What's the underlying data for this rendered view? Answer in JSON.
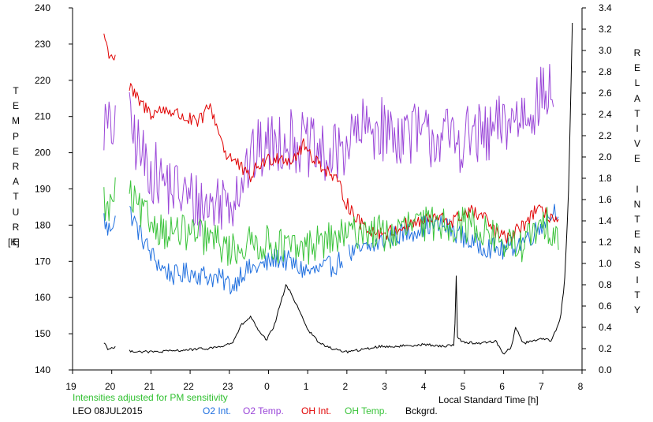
{
  "chart_data": {
    "type": "line",
    "title": "",
    "xlabel": "Local Standard Time [h]",
    "ylabel_left": "TEMPERATURE",
    "ylabel_left_unit": "[K]",
    "ylabel_right": "RELATIVE INTENSITY",
    "xlim": [
      19,
      32
    ],
    "x_ticks": [
      19,
      20,
      21,
      22,
      23,
      24,
      25,
      26,
      27,
      28,
      29,
      30,
      31,
      32
    ],
    "x_tick_labels": [
      "19",
      "20",
      "21",
      "22",
      "23",
      "0",
      "1",
      "2",
      "3",
      "4",
      "5",
      "6",
      "7",
      "8"
    ],
    "ylim_left": [
      140,
      240
    ],
    "y_left_ticks": [
      "140",
      "150",
      "160",
      "170",
      "180",
      "190",
      "200",
      "210",
      "220",
      "230",
      "240"
    ],
    "ylim_right": [
      0.0,
      3.4
    ],
    "y_right_ticks": [
      "0.0",
      "0.2",
      "0.4",
      "0.6",
      "0.8",
      "1.0",
      "1.2",
      "1.4",
      "1.6",
      "1.8",
      "2.0",
      "2.2",
      "2.4",
      "2.6",
      "2.8",
      "3.0",
      "3.2",
      "3.4"
    ],
    "grid": false,
    "note": "Intensities adjusted for PM sensitivity",
    "station_date": "LEO 08JUL2015",
    "series": [
      {
        "name": "O2 Int.",
        "color": "#1f6fdf",
        "axis": "left",
        "noise": 3.0,
        "points": [
          [
            19.8,
            182
          ],
          [
            19.9,
            178
          ],
          [
            20.1,
            183
          ],
          [
            null,
            null
          ],
          [
            20.45,
            184
          ],
          [
            20.7,
            178
          ],
          [
            21.0,
            172
          ],
          [
            21.3,
            168
          ],
          [
            21.6,
            166
          ],
          [
            22.0,
            167
          ],
          [
            22.4,
            166
          ],
          [
            22.8,
            165
          ],
          [
            23.1,
            163
          ],
          [
            23.3,
            167
          ],
          [
            23.6,
            168
          ],
          [
            23.9,
            169
          ],
          [
            24.2,
            171
          ],
          [
            24.5,
            170
          ],
          [
            24.8,
            168
          ],
          [
            25.1,
            167
          ],
          [
            25.4,
            168
          ],
          [
            25.7,
            169
          ],
          [
            25.9,
            171
          ],
          [
            null,
            null
          ],
          [
            26.05,
            172
          ],
          [
            26.4,
            173
          ],
          [
            26.8,
            175
          ],
          [
            27.2,
            177
          ],
          [
            27.6,
            178
          ],
          [
            28.0,
            180
          ],
          [
            28.4,
            180
          ],
          [
            28.8,
            178
          ],
          [
            29.2,
            175
          ],
          [
            29.6,
            174
          ],
          [
            30.0,
            173
          ],
          [
            30.4,
            175
          ],
          [
            30.8,
            178
          ],
          [
            31.1,
            182
          ],
          [
            31.4,
            185
          ]
        ]
      },
      {
        "name": "O2 Temp.",
        "color": "#9a46d8",
        "axis": "left",
        "noise": 9.0,
        "points": [
          [
            19.8,
            208
          ],
          [
            20.0,
            205
          ],
          [
            20.1,
            212
          ],
          [
            null,
            null
          ],
          [
            20.45,
            208
          ],
          [
            20.8,
            198
          ],
          [
            21.2,
            193
          ],
          [
            21.6,
            190
          ],
          [
            22.0,
            187
          ],
          [
            22.4,
            185
          ],
          [
            22.8,
            187
          ],
          [
            23.1,
            188
          ],
          [
            23.4,
            195
          ],
          [
            23.7,
            200
          ],
          [
            24.0,
            202
          ],
          [
            24.4,
            204
          ],
          [
            24.8,
            203
          ],
          [
            25.2,
            200
          ],
          [
            25.6,
            198
          ],
          [
            26.0,
            203
          ],
          [
            26.4,
            206
          ],
          [
            26.8,
            207
          ],
          [
            27.2,
            205
          ],
          [
            27.6,
            206
          ],
          [
            28.0,
            204
          ],
          [
            28.4,
            205
          ],
          [
            28.8,
            203
          ],
          [
            29.2,
            205
          ],
          [
            29.6,
            204
          ],
          [
            30.0,
            208
          ],
          [
            30.4,
            210
          ],
          [
            30.8,
            214
          ],
          [
            31.1,
            216
          ],
          [
            31.3,
            218
          ]
        ]
      },
      {
        "name": "OH Int.",
        "color": "#e00000",
        "axis": "left",
        "noise": 2.0,
        "points": [
          [
            19.8,
            233
          ],
          [
            19.9,
            228
          ],
          [
            20.1,
            226
          ],
          [
            null,
            null
          ],
          [
            20.45,
            218
          ],
          [
            20.7,
            214
          ],
          [
            21.0,
            211
          ],
          [
            21.4,
            212
          ],
          [
            21.8,
            210
          ],
          [
            22.2,
            208
          ],
          [
            22.5,
            213
          ],
          [
            22.7,
            207
          ],
          [
            22.9,
            200
          ],
          [
            23.2,
            197
          ],
          [
            23.5,
            193
          ],
          [
            23.8,
            197
          ],
          [
            24.2,
            199
          ],
          [
            24.6,
            198
          ],
          [
            24.9,
            202
          ],
          [
            25.2,
            198
          ],
          [
            25.5,
            195
          ],
          [
            25.8,
            191
          ],
          [
            26.0,
            186
          ],
          [
            26.3,
            181
          ],
          [
            26.7,
            178
          ],
          [
            27.1,
            178
          ],
          [
            27.5,
            180
          ],
          [
            27.9,
            181
          ],
          [
            28.3,
            182
          ],
          [
            28.7,
            181
          ],
          [
            29.1,
            184
          ],
          [
            29.5,
            182
          ],
          [
            29.8,
            178
          ],
          [
            30.1,
            176
          ],
          [
            30.5,
            180
          ],
          [
            30.8,
            184
          ],
          [
            31.1,
            183
          ],
          [
            31.4,
            181
          ]
        ]
      },
      {
        "name": "OH Temp.",
        "color": "#3ac33a",
        "axis": "left",
        "noise": 5.0,
        "points": [
          [
            19.8,
            187
          ],
          [
            19.9,
            183
          ],
          [
            20.1,
            190
          ],
          [
            null,
            null
          ],
          [
            20.45,
            188
          ],
          [
            20.7,
            184
          ],
          [
            21.0,
            181
          ],
          [
            21.4,
            178
          ],
          [
            21.8,
            178
          ],
          [
            22.2,
            177
          ],
          [
            22.6,
            176
          ],
          [
            23.0,
            173
          ],
          [
            23.3,
            174
          ],
          [
            23.6,
            175
          ],
          [
            24.0,
            175
          ],
          [
            24.4,
            174
          ],
          [
            24.8,
            173
          ],
          [
            25.2,
            175
          ],
          [
            25.6,
            176
          ],
          [
            26.0,
            177
          ],
          [
            26.4,
            179
          ],
          [
            26.8,
            178
          ],
          [
            27.2,
            177
          ],
          [
            27.6,
            180
          ],
          [
            28.0,
            180
          ],
          [
            28.4,
            181
          ],
          [
            28.8,
            180
          ],
          [
            29.2,
            180
          ],
          [
            29.6,
            178
          ],
          [
            30.0,
            175
          ],
          [
            30.4,
            174
          ],
          [
            30.8,
            178
          ],
          [
            31.1,
            180
          ],
          [
            31.4,
            178
          ]
        ]
      },
      {
        "name": "Bckgrd.",
        "color": "#000000",
        "axis": "right",
        "noise": 0.012,
        "points": [
          [
            19.8,
            0.26
          ],
          [
            19.9,
            0.2
          ],
          [
            20.1,
            0.21
          ],
          [
            null,
            null
          ],
          [
            20.45,
            0.18
          ],
          [
            20.8,
            0.17
          ],
          [
            21.2,
            0.17
          ],
          [
            21.6,
            0.18
          ],
          [
            22.0,
            0.19
          ],
          [
            22.4,
            0.2
          ],
          [
            22.8,
            0.22
          ],
          [
            23.1,
            0.26
          ],
          [
            23.3,
            0.42
          ],
          [
            23.55,
            0.5
          ],
          [
            23.75,
            0.36
          ],
          [
            23.95,
            0.28
          ],
          [
            24.15,
            0.42
          ],
          [
            24.3,
            0.62
          ],
          [
            24.45,
            0.8
          ],
          [
            24.6,
            0.7
          ],
          [
            24.8,
            0.55
          ],
          [
            25.0,
            0.38
          ],
          [
            25.3,
            0.25
          ],
          [
            25.7,
            0.19
          ],
          [
            26.0,
            0.17
          ],
          [
            26.4,
            0.19
          ],
          [
            26.8,
            0.22
          ],
          [
            27.2,
            0.22
          ],
          [
            27.6,
            0.23
          ],
          [
            28.0,
            0.24
          ],
          [
            28.4,
            0.22
          ],
          [
            28.75,
            0.24
          ],
          [
            28.78,
            1.06
          ],
          [
            28.82,
            0.3
          ],
          [
            29.0,
            0.26
          ],
          [
            29.4,
            0.25
          ],
          [
            29.8,
            0.27
          ],
          [
            30.0,
            0.15
          ],
          [
            30.2,
            0.22
          ],
          [
            30.3,
            0.4
          ],
          [
            30.5,
            0.25
          ],
          [
            30.8,
            0.28
          ],
          [
            31.0,
            0.3
          ],
          [
            31.2,
            0.27
          ],
          [
            31.35,
            0.38
          ],
          [
            31.45,
            0.5
          ],
          [
            31.55,
            0.8
          ],
          [
            31.65,
            1.6
          ],
          [
            31.72,
            2.7
          ],
          [
            31.76,
            3.4
          ]
        ]
      }
    ]
  }
}
